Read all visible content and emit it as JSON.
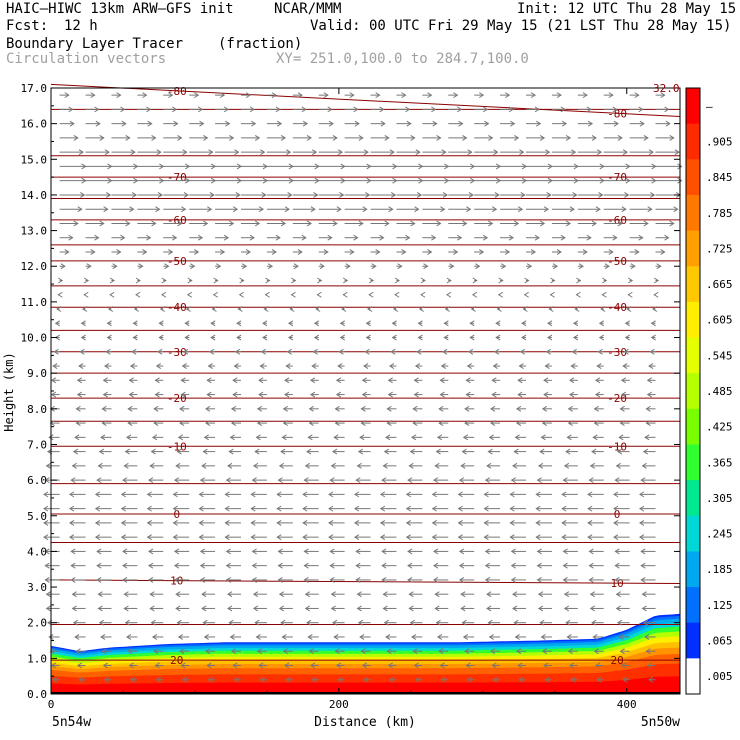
{
  "header": {
    "model": "HAIC–HIWC 13km ARW–GFS init",
    "org": "NCAR/MMM",
    "init": "Init: 12 UTC Thu 28 May 15",
    "fcst_label": "Fcst:",
    "fcst_value": "12 h",
    "valid": "Valid: 00 UTC Fri 29 May 15 (21 LST Thu 28 May 15)",
    "field": "Boundary Layer Tracer",
    "field_units": "(fraction)",
    "vectors": "Circulation vectors",
    "xy": "XY= 251.0,100.0 to 284.7,100.0"
  },
  "chart_data": {
    "type": "heatmap",
    "title": "Boundary Layer Tracer",
    "units": "(fraction)",
    "xlabel": "Distance (km)",
    "ylabel": "Height (km)",
    "xlim": [
      0,
      437
    ],
    "ylim": [
      0,
      17
    ],
    "x_ticks": [
      0,
      200,
      400
    ],
    "y_ticks": [
      "0.0",
      "1.0",
      "2.0",
      "3.0",
      "4.0",
      "5.0",
      "6.0",
      "7.0",
      "8.0",
      "9.0",
      "10.0",
      "11.0",
      "12.0",
      "13.0",
      "14.0",
      "15.0",
      "16.0",
      "17.0"
    ],
    "x_endpoints": [
      "5n54w",
      "5n50w"
    ],
    "colorbar_labels": [
      "–",
      ".905",
      ".845",
      ".785",
      ".725",
      ".665",
      ".605",
      ".545",
      ".485",
      ".425",
      ".365",
      ".305",
      ".245",
      ".185",
      ".125",
      ".065",
      ".005"
    ],
    "colorbar_colors": [
      "#ff0000",
      "#ff2a00",
      "#ff5000",
      "#ff7800",
      "#ffa000",
      "#ffc800",
      "#ffee00",
      "#e6ff00",
      "#b4ff00",
      "#78ff00",
      "#30ff30",
      "#00e890",
      "#00d8d8",
      "#00a8f0",
      "#0070ff",
      "#0030ff",
      "#ffffff"
    ],
    "tracer_top_km": [
      {
        "x": 0,
        "z": 1.35
      },
      {
        "x": 20,
        "z": 1.2
      },
      {
        "x": 40,
        "z": 1.3
      },
      {
        "x": 80,
        "z": 1.4
      },
      {
        "x": 120,
        "z": 1.45
      },
      {
        "x": 200,
        "z": 1.45
      },
      {
        "x": 280,
        "z": 1.45
      },
      {
        "x": 340,
        "z": 1.5
      },
      {
        "x": 380,
        "z": 1.55
      },
      {
        "x": 400,
        "z": 1.8
      },
      {
        "x": 420,
        "z": 2.2
      },
      {
        "x": 437,
        "z": 2.25
      }
    ],
    "contour_label": "32.0",
    "contours": [
      {
        "label": "-80",
        "z0": 17.1,
        "z1": 16.2
      },
      {
        "label": "-70",
        "z0": 14.5,
        "z1": 14.5
      },
      {
        "label": "-60",
        "z0": 13.3,
        "z1": 13.3
      },
      {
        "label": "-50",
        "z0": 12.15,
        "z1": 12.15
      },
      {
        "label": "-40",
        "z0": 10.85,
        "z1": 10.85
      },
      {
        "label": "-30",
        "z0": 9.6,
        "z1": 9.6
      },
      {
        "label": "-20",
        "z0": 8.3,
        "z1": 8.3
      },
      {
        "label": "-10",
        "z0": 6.95,
        "z1": 6.95
      },
      {
        "label": "0",
        "z0": 5.05,
        "z1": 5.05
      },
      {
        "label": "10",
        "z0": 3.2,
        "z1": 3.1
      },
      {
        "label": "20",
        "z0": 0.95,
        "z1": 0.95
      }
    ],
    "unlabeled_contours_km": [
      16.4,
      15.1,
      13.9,
      12.6,
      11.45,
      10.2,
      9.0,
      7.65,
      5.9,
      4.25,
      1.95
    ],
    "wind_rows": [
      {
        "z": 16.8,
        "u": 0.35
      },
      {
        "z": 16.4,
        "u": 0.5
      },
      {
        "z": 16.0,
        "u": 0.55
      },
      {
        "z": 15.6,
        "u": 0.7
      },
      {
        "z": 15.2,
        "u": 0.9
      },
      {
        "z": 14.8,
        "u": 1.0
      },
      {
        "z": 14.4,
        "u": 1.0
      },
      {
        "z": 14.0,
        "u": 0.95
      },
      {
        "z": 13.6,
        "u": 0.85
      },
      {
        "z": 13.2,
        "u": 0.7
      },
      {
        "z": 12.8,
        "u": 0.5
      },
      {
        "z": 12.4,
        "u": 0.35
      },
      {
        "z": 12.0,
        "u": 0.2
      },
      {
        "z": 11.6,
        "u": 0.1
      },
      {
        "z": 11.2,
        "u": -0.05
      },
      {
        "z": 10.8,
        "u": -0.1
      },
      {
        "z": 10.4,
        "u": -0.15
      },
      {
        "z": 10.0,
        "u": -0.15
      },
      {
        "z": 9.6,
        "u": -0.2
      },
      {
        "z": 9.2,
        "u": -0.25
      },
      {
        "z": 8.8,
        "u": -0.3
      },
      {
        "z": 8.4,
        "u": -0.3
      },
      {
        "z": 8.0,
        "u": -0.35
      },
      {
        "z": 7.6,
        "u": -0.35
      },
      {
        "z": 7.2,
        "u": -0.4
      },
      {
        "z": 6.8,
        "u": -0.45
      },
      {
        "z": 6.4,
        "u": -0.5
      },
      {
        "z": 6.0,
        "u": -0.55
      },
      {
        "z": 5.6,
        "u": -0.6
      },
      {
        "z": 5.2,
        "u": -0.6
      },
      {
        "z": 4.8,
        "u": -0.6
      },
      {
        "z": 4.4,
        "u": -0.6
      },
      {
        "z": 4.0,
        "u": -0.55
      },
      {
        "z": 3.6,
        "u": -0.55
      },
      {
        "z": 3.2,
        "u": -0.55
      },
      {
        "z": 2.8,
        "u": -0.5
      },
      {
        "z": 2.4,
        "u": -0.5
      },
      {
        "z": 2.0,
        "u": -0.45
      },
      {
        "z": 1.6,
        "u": -0.4
      },
      {
        "z": 1.2,
        "u": -0.35
      },
      {
        "z": 0.8,
        "u": -0.3
      },
      {
        "z": 0.4,
        "u": -0.25
      }
    ],
    "wind_columns_km": [
      6,
      24,
      42,
      60,
      78,
      96,
      114,
      132,
      150,
      168,
      186,
      204,
      222,
      240,
      258,
      276,
      294,
      312,
      330,
      348,
      366,
      384,
      402,
      420
    ],
    "grid": false,
    "legend_position": "right"
  }
}
